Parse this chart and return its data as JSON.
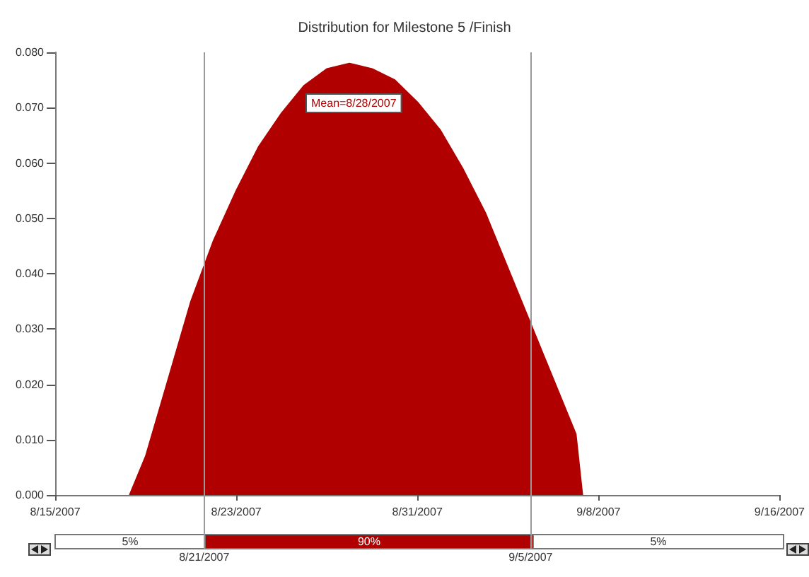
{
  "chart_data": {
    "type": "area",
    "title": "Distribution for Milestone 5 /Finish",
    "x": [
      "2007-08-18T07:00",
      "2007-08-19",
      "2007-08-20",
      "2007-08-21",
      "2007-08-22",
      "2007-08-23",
      "2007-08-24",
      "2007-08-25",
      "2007-08-26",
      "2007-08-27",
      "2007-08-28",
      "2007-08-29",
      "2007-08-30",
      "2007-08-31",
      "2007-09-01",
      "2007-09-02",
      "2007-09-03",
      "2007-09-04",
      "2007-09-05",
      "2007-09-06",
      "2007-09-07",
      "2007-09-07T07:00"
    ],
    "series": [
      {
        "color": "#b00000",
        "values": [
          0,
          0.007,
          0.021,
          0.035,
          0.046,
          0.055,
          0.063,
          0.069,
          0.074,
          0.077,
          0.078,
          0.077,
          0.075,
          0.071,
          0.066,
          0.059,
          0.051,
          0.041,
          0.031,
          0.021,
          0.011,
          0
        ]
      }
    ],
    "xlim": [
      "2007-08-15",
      "2007-09-16"
    ],
    "xticks": [
      {
        "value": "2007-08-15",
        "label": "8/15/2007"
      },
      {
        "value": "2007-08-23",
        "label": "8/23/2007"
      },
      {
        "value": "2007-08-31",
        "label": "8/31/2007"
      },
      {
        "value": "2007-09-08",
        "label": "9/8/2007"
      },
      {
        "value": "2007-09-16",
        "label": "9/16/2007"
      }
    ],
    "ylim": [
      0,
      0.08
    ],
    "yticks": [
      {
        "value": 0,
        "label": "0.000"
      },
      {
        "value": 0.01,
        "label": "0.010"
      },
      {
        "value": 0.02,
        "label": "0.020"
      },
      {
        "value": 0.03,
        "label": "0.030"
      },
      {
        "value": 0.04,
        "label": "0.040"
      },
      {
        "value": 0.05,
        "label": "0.050"
      },
      {
        "value": 0.06,
        "label": "0.060"
      },
      {
        "value": 0.07,
        "label": "0.070"
      },
      {
        "value": 0.08,
        "label": "0.080"
      }
    ],
    "ref_lines": [
      {
        "axis": "x",
        "value": "2007-08-21T14:00",
        "label": "8/21/2007",
        "color": "#999999"
      },
      {
        "axis": "x",
        "value": "2007-09-05",
        "label": "9/5/2007",
        "color": "#999999"
      }
    ],
    "annotations": [
      "Mean=8/28/2007",
      "5%",
      "90%",
      "5%"
    ],
    "grid": false
  }
}
